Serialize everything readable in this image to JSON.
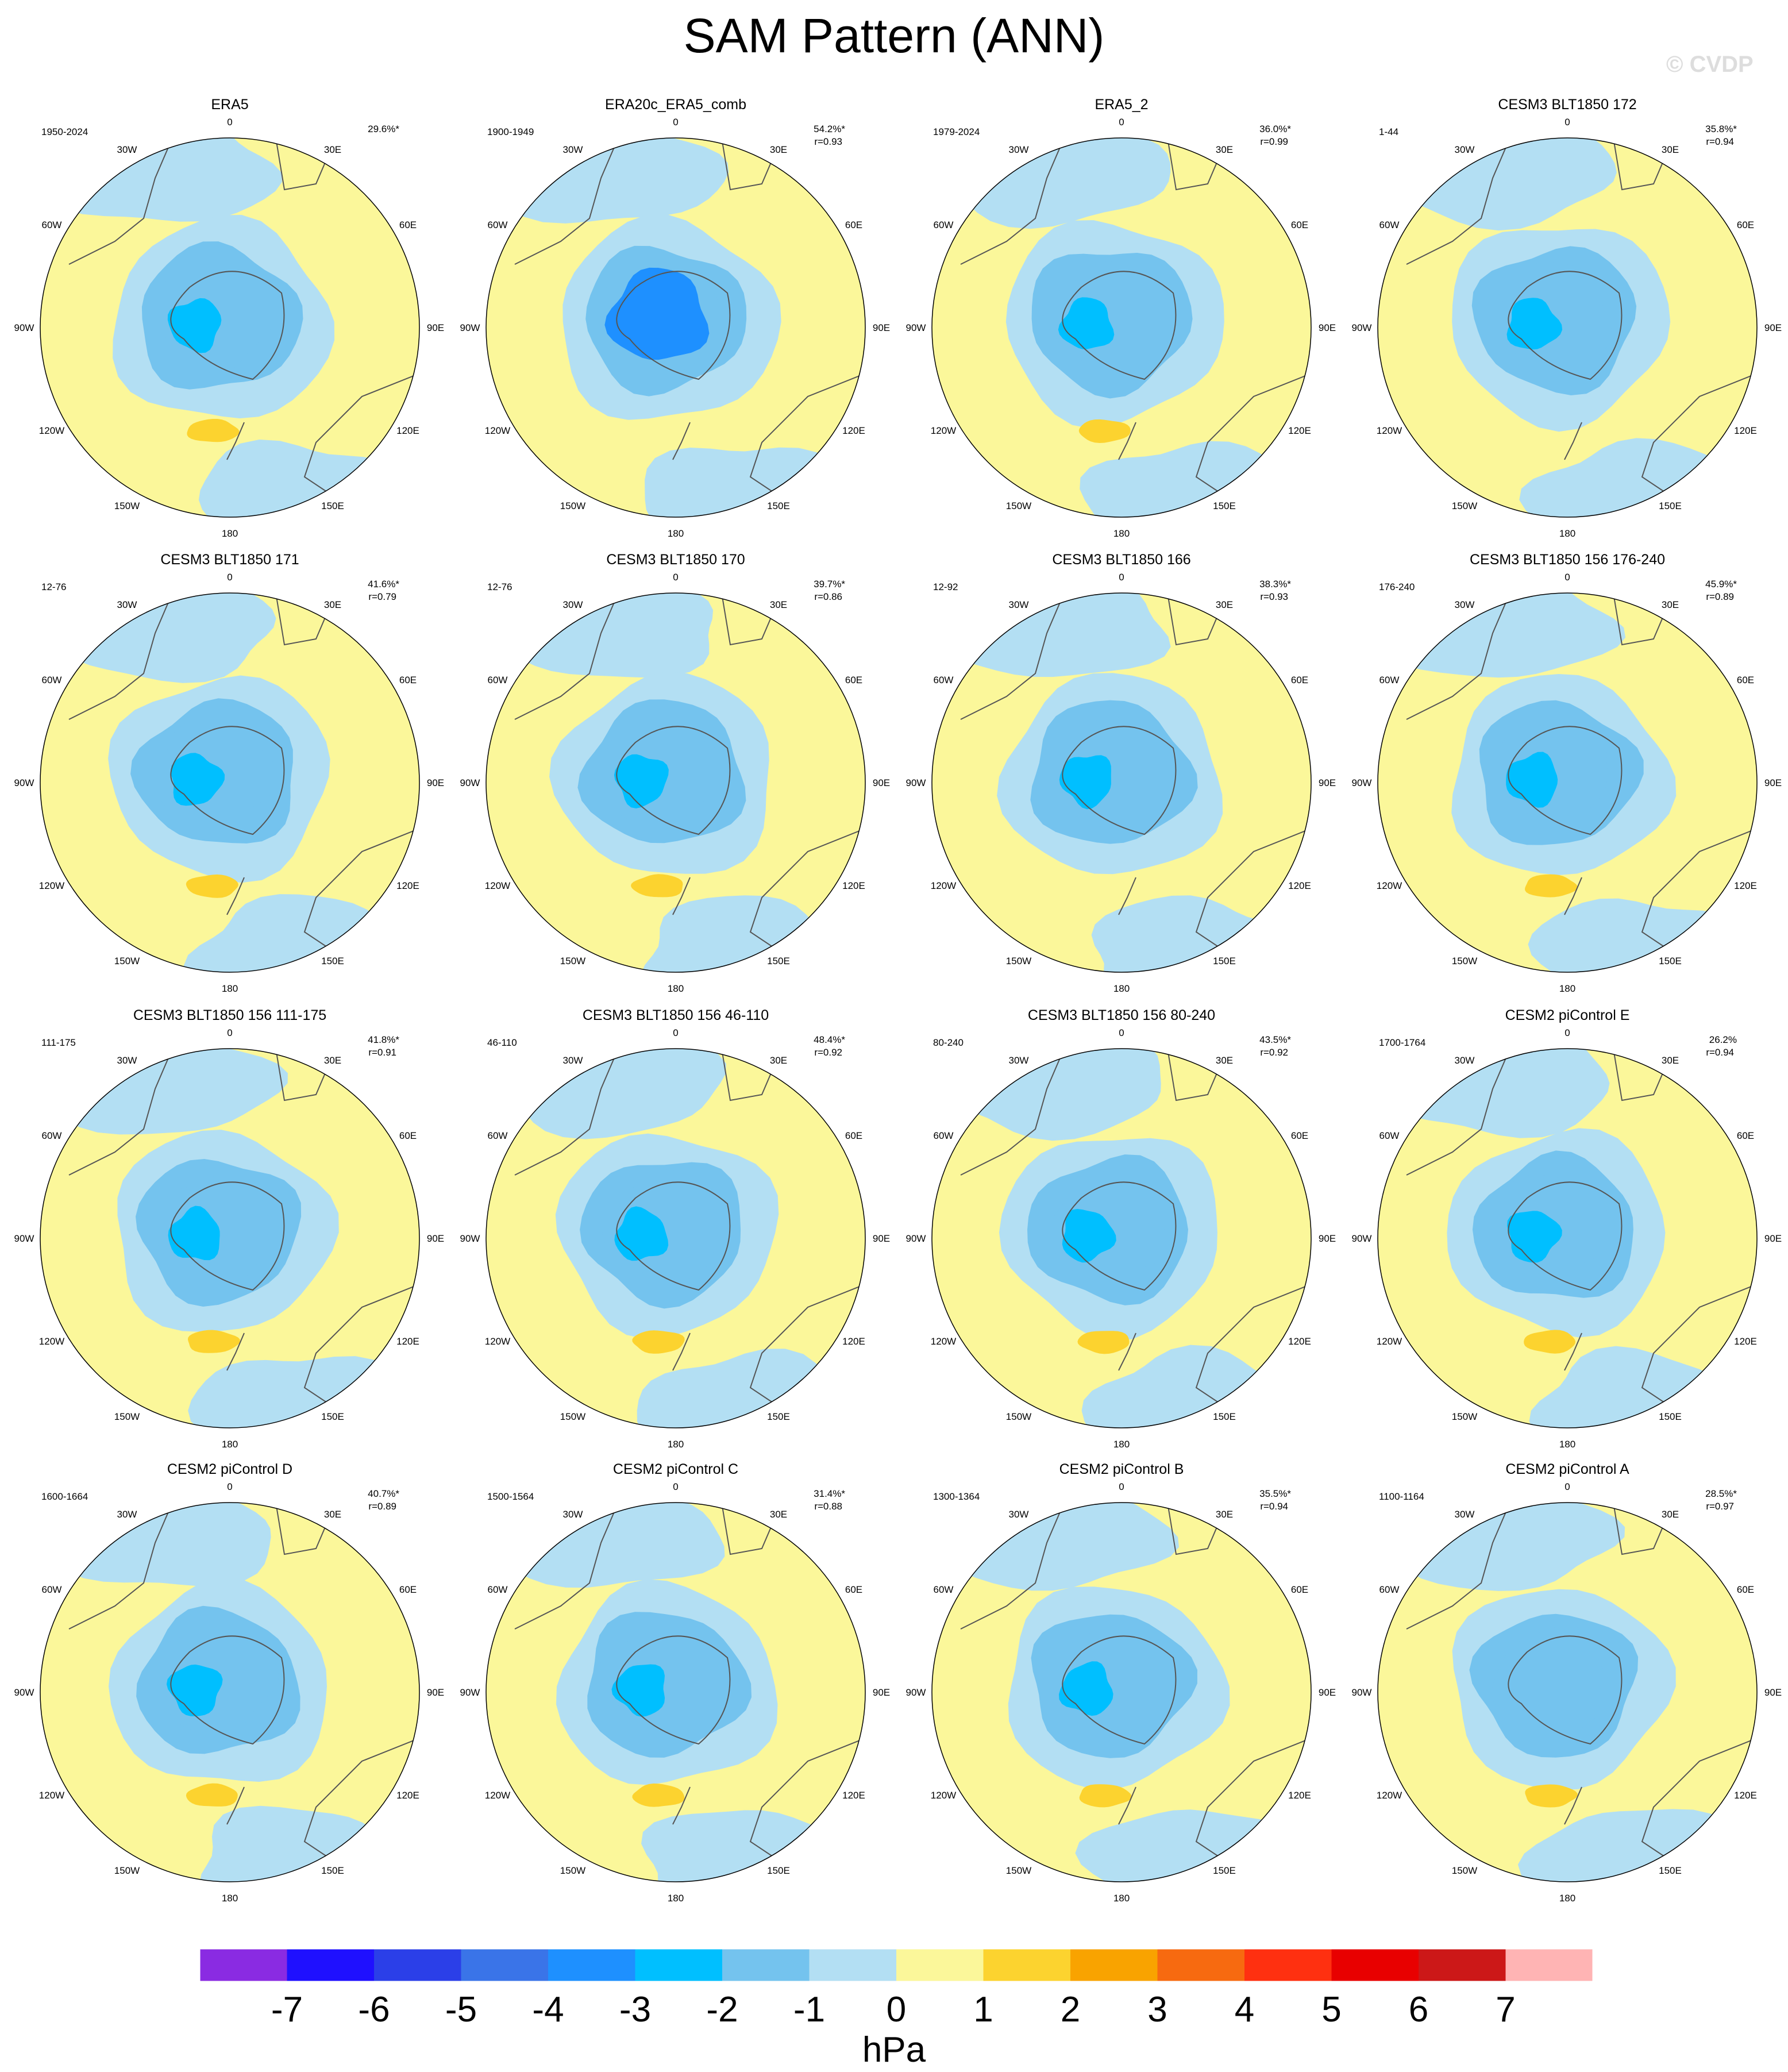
{
  "title": "SAM Pattern (ANN)",
  "watermark": "© CVDP",
  "colors": {
    "ocean_neg1": "#b3dff3",
    "pos0": "#fbf79a",
    "pos1": "#fcd32f",
    "neg2": "#74c3ee",
    "neg3": "#00bfff",
    "neg4": "#1e90ff",
    "coast": "#555555"
  },
  "chart_data": {
    "type": "contour-map",
    "projection": "south polar stereographic",
    "variable": "SAM Pattern (ANN)",
    "units": "hPa",
    "lon_labels": [
      "0",
      "30E",
      "60E",
      "90E",
      "120E",
      "150E",
      "180",
      "150W",
      "120W",
      "90W",
      "60W",
      "30W"
    ],
    "panels": [
      {
        "title": "ERA5",
        "period": "1950-2024",
        "pct": "29.6%*",
        "r": ""
      },
      {
        "title": "ERA20c_ERA5_comb",
        "period": "1900-1949",
        "pct": "54.2%*",
        "r": "r=0.93"
      },
      {
        "title": "ERA5_2",
        "period": "1979-2024",
        "pct": "36.0%*",
        "r": "r=0.99"
      },
      {
        "title": "CESM3 BLT1850 172",
        "period": "1-44",
        "pct": "35.8%*",
        "r": "r=0.94"
      },
      {
        "title": "CESM3 BLT1850 171",
        "period": "12-76",
        "pct": "41.6%*",
        "r": "r=0.79"
      },
      {
        "title": "CESM3 BLT1850 170",
        "period": "12-76",
        "pct": "39.7%*",
        "r": "r=0.86"
      },
      {
        "title": "CESM3 BLT1850 166",
        "period": "12-92",
        "pct": "38.3%*",
        "r": "r=0.93"
      },
      {
        "title": "CESM3 BLT1850 156 176-240",
        "period": "176-240",
        "pct": "45.9%*",
        "r": "r=0.89"
      },
      {
        "title": "CESM3 BLT1850 156 111-175",
        "period": "111-175",
        "pct": "41.8%*",
        "r": "r=0.91"
      },
      {
        "title": "CESM3 BLT1850 156 46-110",
        "period": "46-110",
        "pct": "48.4%*",
        "r": "r=0.92"
      },
      {
        "title": "CESM3 BLT1850 156 80-240",
        "period": "80-240",
        "pct": "43.5%*",
        "r": "r=0.92"
      },
      {
        "title": "CESM2 piControl E",
        "period": "1700-1764",
        "pct": "26.2%",
        "r": "r=0.94"
      },
      {
        "title": "CESM2 piControl D",
        "period": "1600-1664",
        "pct": "40.7%*",
        "r": "r=0.89"
      },
      {
        "title": "CESM2 piControl C",
        "period": "1500-1564",
        "pct": "31.4%*",
        "r": "r=0.88"
      },
      {
        "title": "CESM2 piControl B",
        "period": "1300-1364",
        "pct": "35.5%*",
        "r": "r=0.94"
      },
      {
        "title": "CESM2 piControl A",
        "period": "1100-1164",
        "pct": "28.5%*",
        "r": "r=0.97"
      }
    ],
    "colorbar": {
      "label": "hPa",
      "ticks": [
        "-7",
        "-6",
        "-5",
        "-4",
        "-3",
        "-2",
        "-1",
        "0",
        "1",
        "2",
        "3",
        "4",
        "5",
        "6",
        "7"
      ],
      "colors": [
        "#8a2be2",
        "#1f10ff",
        "#2b3fe8",
        "#3a74e8",
        "#1e90ff",
        "#00bfff",
        "#74c3ee",
        "#b3dff3",
        "#fbf79a",
        "#fcd32f",
        "#f9a300",
        "#f76a10",
        "#ff3010",
        "#e80000",
        "#cc1818",
        "#ffb4b4"
      ]
    }
  }
}
